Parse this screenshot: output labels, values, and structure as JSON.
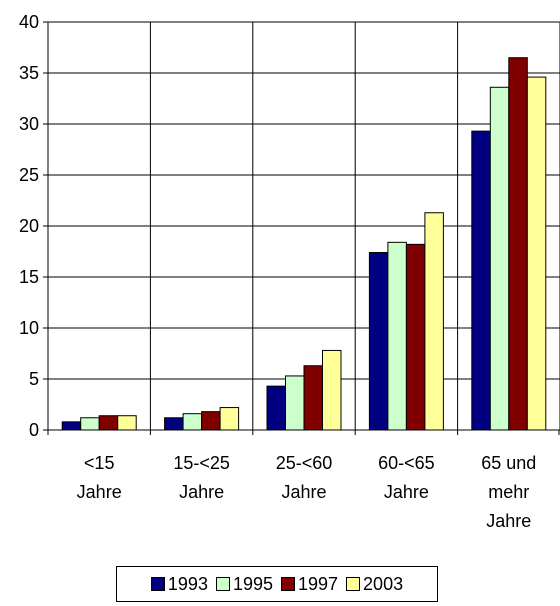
{
  "chart_data": {
    "type": "bar",
    "title": "",
    "xlabel": "",
    "ylabel": "",
    "ylim": [
      0,
      40
    ],
    "yticks": [
      0,
      5,
      10,
      15,
      20,
      25,
      30,
      35,
      40
    ],
    "grid": true,
    "legend_position": "bottom",
    "categories": [
      [
        "<15",
        "Jahre"
      ],
      [
        "15-<25",
        "Jahre"
      ],
      [
        "25-<60",
        "Jahre"
      ],
      [
        "60-<65",
        "Jahre"
      ],
      [
        "65 und",
        "mehr",
        "Jahre"
      ]
    ],
    "series": [
      {
        "name": "1993",
        "color": "#000080",
        "values": [
          0.8,
          1.2,
          4.3,
          17.4,
          29.3
        ]
      },
      {
        "name": "1995",
        "color": "#CCFFCC",
        "values": [
          1.2,
          1.6,
          5.3,
          18.4,
          33.6
        ]
      },
      {
        "name": "1997",
        "color": "#800000",
        "values": [
          1.4,
          1.8,
          6.3,
          18.2,
          36.5
        ]
      },
      {
        "name": "2003",
        "color": "#FFFF99",
        "values": [
          1.4,
          2.2,
          7.8,
          21.3,
          34.6
        ]
      }
    ]
  }
}
